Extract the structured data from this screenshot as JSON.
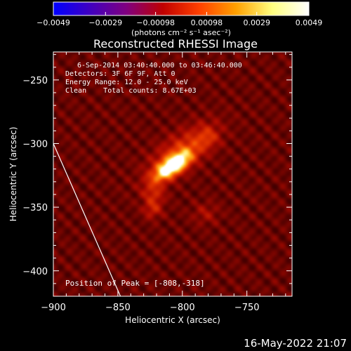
{
  "chart_data": {
    "type": "heatmap",
    "title": "Reconstructed RHESSI Image",
    "xlabel": "Heliocentric X (arcsec)",
    "ylabel": "Heliocentric Y (arcsec)",
    "xlim": [
      -900,
      -715
    ],
    "ylim": [
      -420,
      -228
    ],
    "x_ticks": [
      -900,
      -850,
      -800,
      -750
    ],
    "x_tick_labels": [
      "−900",
      "−850",
      "−800",
      "−750"
    ],
    "y_ticks": [
      -250,
      -300,
      -350,
      -400
    ],
    "y_tick_labels": [
      "−250",
      "−300",
      "−350",
      "−400"
    ],
    "colorbar": {
      "min": -0.0049,
      "max": 0.0049,
      "ticks": [
        -0.0049,
        -0.0029,
        -0.00098,
        0.00098,
        0.0029,
        0.0049
      ],
      "tick_labels": [
        "−0.0049",
        "−0.0029",
        "−0.00098",
        "0.00098",
        "0.0029",
        "0.0049"
      ],
      "unit_label": "(photons cm⁻² s⁻¹ asec⁻²)",
      "colors": [
        "#0000ff",
        "#4000c0",
        "#800080",
        "#c00000",
        "#ff4000",
        "#ffa000",
        "#ffff80",
        "#ffffff"
      ]
    },
    "info_lines": [
      "6-Sep-2014 03:40:40.000 to 03:46:40.000",
      "Detectors: 3F 6F 9F, Att 0",
      "Energy Range: 12.0 - 25.0 keV",
      "Clean    Total counts: 8.67E+03"
    ],
    "peak_label": "Position of Peak = [-808,-318]",
    "peak_position": [
      -808,
      -318
    ],
    "sources": [
      {
        "x": -808,
        "y": -318,
        "intensity": 0.0049,
        "sx": 12,
        "sy": 5,
        "angle_deg": 35
      },
      {
        "x": -800,
        "y": -305,
        "intensity": 0.0018,
        "sx": 20,
        "sy": 9,
        "angle_deg": 35
      },
      {
        "x": -822,
        "y": -340,
        "intensity": 0.0014,
        "sx": 6,
        "sy": 6,
        "angle_deg": 0
      },
      {
        "x": -823,
        "y": -352,
        "intensity": 0.0013,
        "sx": 5,
        "sy": 5,
        "angle_deg": 0
      },
      {
        "x": -780,
        "y": -295,
        "intensity": 0.0011,
        "sx": 6,
        "sy": 6,
        "angle_deg": 0
      },
      {
        "x": -782,
        "y": -355,
        "intensity": 0.0008,
        "sx": 7,
        "sy": 6,
        "angle_deg": 0
      }
    ],
    "background_level": 0.00085,
    "limb_line": [
      [
        -900,
        -300
      ],
      [
        -848,
        -420
      ]
    ],
    "grid": false,
    "legend": "none"
  },
  "footer": {
    "date_stamp": "16-May-2022 21:07"
  }
}
